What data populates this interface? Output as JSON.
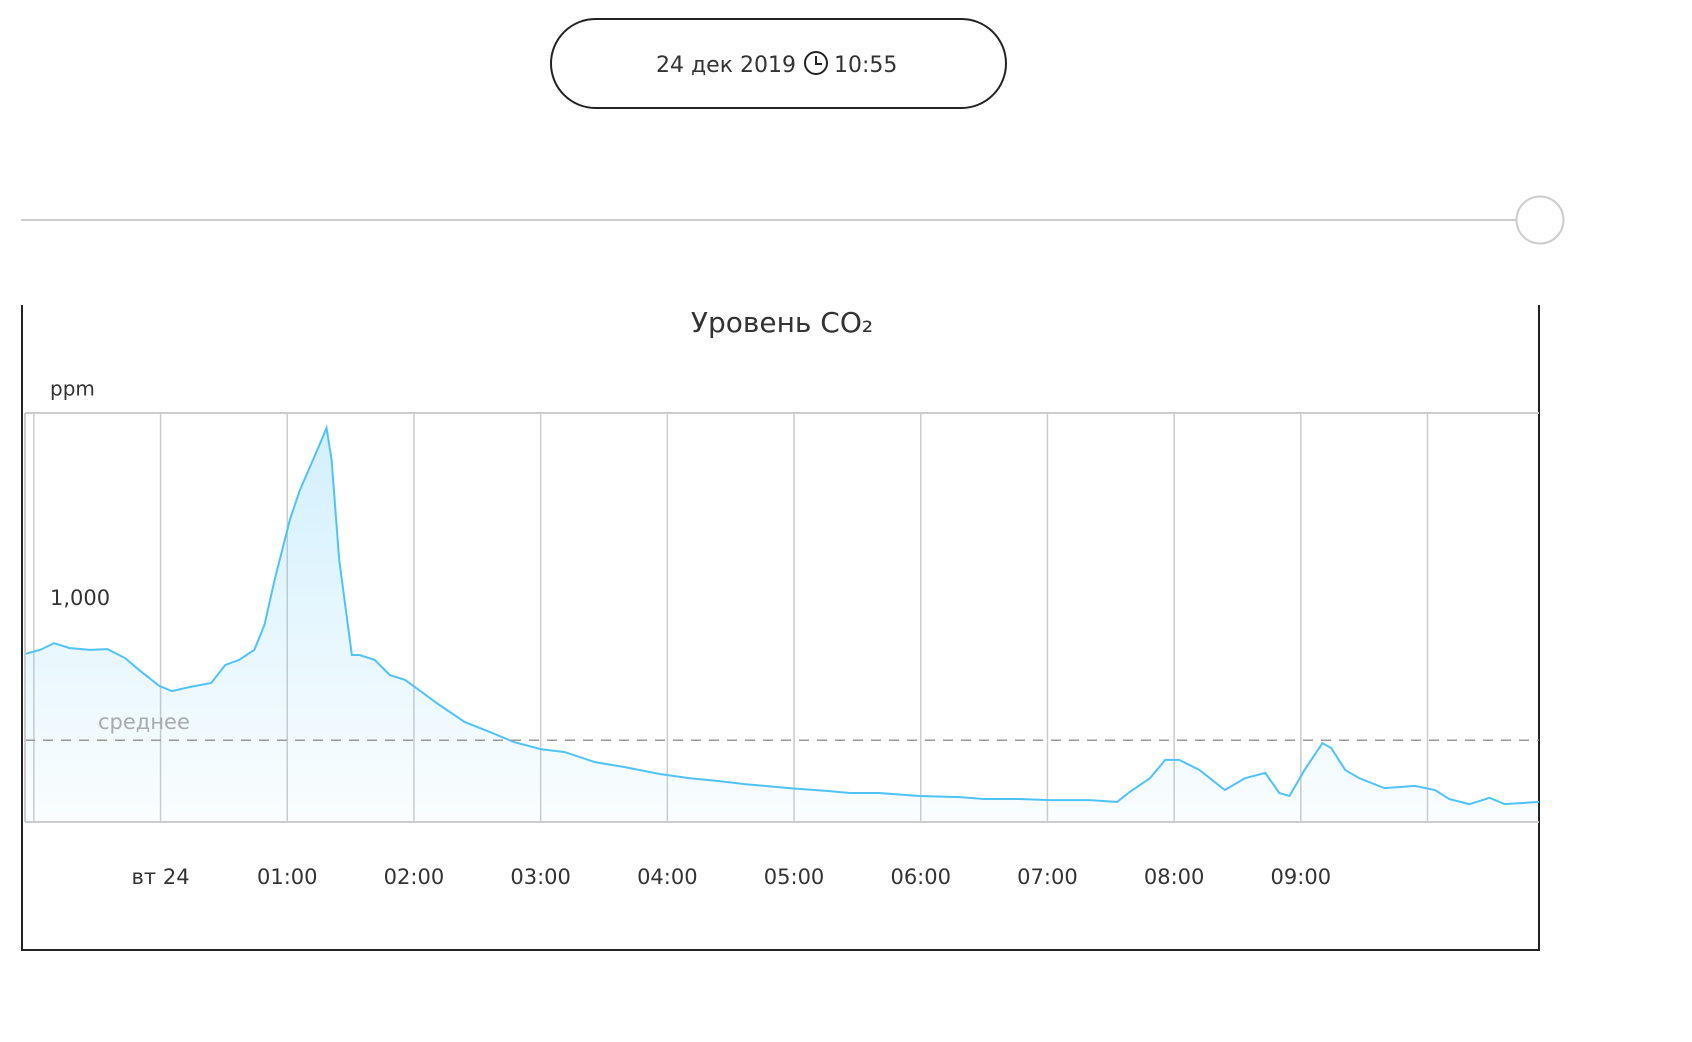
{
  "header": {
    "date": "24 дек 2019",
    "time": "10:55"
  },
  "chart_data": {
    "type": "area",
    "title": "Уровень CO₂",
    "ylabel": "ppm",
    "ylim": [
      400,
      1500
    ],
    "yticks": [
      {
        "value": 1000,
        "label": "1,000"
      }
    ],
    "ygrid": false,
    "xlim": [
      -1.07,
      10.88
    ],
    "xticks": [
      {
        "value": -1,
        "label": null
      },
      {
        "value": 0,
        "label": "вт 24"
      },
      {
        "value": 1,
        "label": "01:00"
      },
      {
        "value": 2,
        "label": "02:00"
      },
      {
        "value": 3,
        "label": "03:00"
      },
      {
        "value": 4,
        "label": "04:00"
      },
      {
        "value": 5,
        "label": "05:00"
      },
      {
        "value": 6,
        "label": "06:00"
      },
      {
        "value": 7,
        "label": "07:00"
      },
      {
        "value": 8,
        "label": "08:00"
      },
      {
        "value": 9,
        "label": "09:00"
      },
      {
        "value": 10,
        "label": null
      }
    ],
    "xgrid": true,
    "average": {
      "label": "среднее",
      "value": 620
    },
    "color": "#4fc3f7",
    "x": [
      -1.07,
      -0.95,
      -0.84,
      -0.72,
      -0.56,
      -0.42,
      -0.28,
      -0.17,
      -0.01,
      0.09,
      0.23,
      0.4,
      0.51,
      0.62,
      0.74,
      0.82,
      0.9,
      1.02,
      1.1,
      1.22,
      1.27,
      1.31,
      1.35,
      1.41,
      1.51,
      1.57,
      1.69,
      1.81,
      1.93,
      2.04,
      2.2,
      2.4,
      2.6,
      2.79,
      3.0,
      3.19,
      3.43,
      3.66,
      3.94,
      4.17,
      4.41,
      4.61,
      4.96,
      5.28,
      5.44,
      5.67,
      5.99,
      6.31,
      6.5,
      6.78,
      7.02,
      7.33,
      7.55,
      7.65,
      7.81,
      7.93,
      8.04,
      8.2,
      8.4,
      8.56,
      8.72,
      8.83,
      8.91,
      9.03,
      9.17,
      9.24,
      9.35,
      9.46,
      9.66,
      9.9,
      10.06,
      10.17,
      10.33,
      10.49,
      10.61,
      10.88
    ],
    "values": [
      852,
      863,
      881,
      868,
      863,
      865,
      841,
      809,
      766,
      752,
      763,
      774,
      822,
      836,
      863,
      930,
      1051,
      1212,
      1293,
      1387,
      1427,
      1460,
      1374,
      1105,
      849,
      849,
      836,
      795,
      782,
      755,
      715,
      669,
      642,
      615,
      596,
      588,
      561,
      548,
      529,
      518,
      510,
      502,
      491,
      483,
      478,
      478,
      470,
      467,
      462,
      462,
      459,
      459,
      454,
      481,
      518,
      567,
      567,
      540,
      486,
      518,
      532,
      478,
      470,
      540,
      612,
      599,
      540,
      518,
      491,
      497,
      486,
      462,
      448,
      465,
      448,
      454
    ]
  }
}
